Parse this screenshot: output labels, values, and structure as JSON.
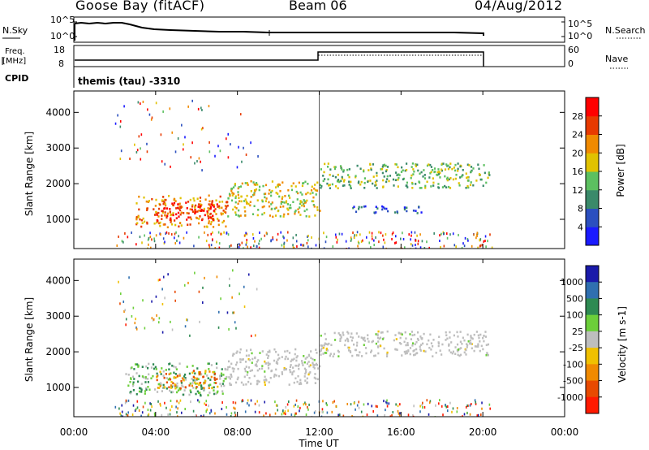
{
  "header": {
    "site": "Goose Bay (fitACF)",
    "beam": "Beam 06",
    "date": "04/Aug/2012"
  },
  "panels": {
    "noise": {
      "left_label": "N.Sky",
      "right_label": "N.Search",
      "ticks_left": [
        "10^5",
        "10^0"
      ],
      "ticks_right": [
        "10^5",
        "10^0"
      ]
    },
    "freq": {
      "left_label_1": "Freq.",
      "left_label_2": "[MHz]",
      "right_label": "Nave",
      "ticks_left": [
        "18",
        "8"
      ],
      "ticks_right": [
        "60",
        "0"
      ]
    },
    "cpid": {
      "label": "CPID",
      "value": "themis (tau) -3310"
    }
  },
  "x_axis": {
    "label": "Time UT",
    "ticks": [
      "00:00",
      "04:00",
      "08:00",
      "12:00",
      "16:00",
      "20:00",
      "00:00"
    ]
  },
  "chart_data": [
    {
      "type": "heatmap",
      "name": "power",
      "ylabel": "Slant Range [km]",
      "yticks": [
        "1000",
        "2000",
        "3000",
        "4000"
      ],
      "ylim": [
        180,
        4600
      ],
      "xlim_hours": [
        0,
        24
      ],
      "colorbar": {
        "label": "Power [dB]",
        "ticks": [
          "4",
          "8",
          "12",
          "16",
          "20",
          "24",
          "28"
        ],
        "colors": [
          "#1a1aff",
          "#2b4fbf",
          "#3a8a6a",
          "#5cc060",
          "#e0c200",
          "#f08a00",
          "#e83a00",
          "#ff0000"
        ]
      },
      "echo_regions": [
        {
          "t": [
            3.0,
            7.5
          ],
          "r": [
            800,
            1700
          ],
          "level": 5
        },
        {
          "t": [
            4.0,
            7.0
          ],
          "r": [
            1000,
            1500
          ],
          "level": 7
        },
        {
          "t": [
            7.5,
            12.0
          ],
          "r": [
            1100,
            2100
          ],
          "level": 4
        },
        {
          "t": [
            12.0,
            20.3
          ],
          "r": [
            1900,
            2600
          ],
          "level": 3
        },
        {
          "t": [
            13.5,
            17.0
          ],
          "r": [
            1200,
            1400
          ],
          "level": 1
        }
      ]
    },
    {
      "type": "heatmap",
      "name": "velocity",
      "ylabel": "Slant Range [km]",
      "yticks": [
        "1000",
        "2000",
        "3000",
        "4000"
      ],
      "ylim": [
        180,
        4600
      ],
      "xlim_hours": [
        0,
        24
      ],
      "colorbar": {
        "label": "Velocity [m s-1]",
        "ticks": [
          "1000",
          "500",
          "100",
          "25",
          "-25",
          "-100",
          "-500",
          "-1000"
        ],
        "colors": [
          "#1a1aaa",
          "#2f6fb0",
          "#2e8a52",
          "#6ccf3a",
          "#bebebe",
          "#f0c000",
          "#f08a00",
          "#e84a00",
          "#ff1a00"
        ]
      },
      "echo_regions": [
        {
          "t": [
            2.5,
            7.5
          ],
          "r": [
            800,
            1700
          ],
          "level": 3
        },
        {
          "t": [
            4.0,
            7.0
          ],
          "r": [
            1000,
            1500
          ],
          "level": 6
        },
        {
          "t": [
            7.5,
            12.0
          ],
          "r": [
            1100,
            2100
          ],
          "level": 4
        },
        {
          "t": [
            12.0,
            20.3
          ],
          "r": [
            1900,
            2600
          ],
          "level": 4
        }
      ]
    }
  ]
}
